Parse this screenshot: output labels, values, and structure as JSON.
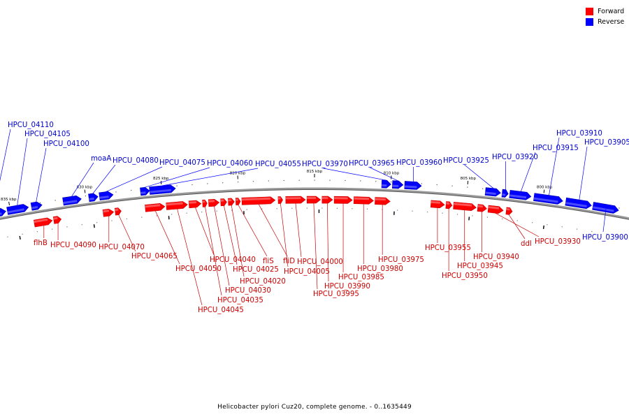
{
  "legend": {
    "forward": {
      "label": "Forward",
      "color": "#ff0000"
    },
    "reverse": {
      "label": "Reverse",
      "color": "#0000ff"
    }
  },
  "caption": "Helicobacter pylori Cuz20, complete genome. - 0..1635449",
  "scale": {
    "ticks": [
      {
        "kbp": 835,
        "label": "835 kbp"
      },
      {
        "kbp": 830,
        "label": "830 kbp"
      },
      {
        "kbp": 825,
        "label": "825 kbp"
      },
      {
        "kbp": 820,
        "label": "820 kbp"
      },
      {
        "kbp": 815,
        "label": "815 kbp"
      },
      {
        "kbp": 810,
        "label": "810 kbp"
      },
      {
        "kbp": 805,
        "label": "805 kbp"
      },
      {
        "kbp": 800,
        "label": "800 kbp"
      }
    ]
  },
  "reverse_genes": [
    {
      "label": "HPCU_04110",
      "s": 836.8,
      "e": 835.3
    },
    {
      "label": "HPCU_04105",
      "s": 835.2,
      "e": 833.8
    },
    {
      "label": "HPCU_04100",
      "s": 833.6,
      "e": 832.9
    },
    {
      "label": "moaA",
      "s": 831.5,
      "e": 830.3
    },
    {
      "label": "HPCU_04080",
      "s": 829.8,
      "e": 829.2
    },
    {
      "label": "HPCU_04075",
      "s": 829.1,
      "e": 828.2
    },
    {
      "label": "HPCU_04060",
      "s": 826.4,
      "e": 825.8
    },
    {
      "label": "HPCU_04055",
      "s": 825.8,
      "e": 824.1
    },
    {
      "label": "HPCU_03970",
      "s": 810.6,
      "e": 810.0
    },
    {
      "label": "HPCU_03965",
      "s": 809.9,
      "e": 809.2
    },
    {
      "label": "HPCU_03960",
      "s": 809.1,
      "e": 808.0
    },
    {
      "label": "HPCU_03925",
      "s": 803.8,
      "e": 802.8
    },
    {
      "label": "HPCU_03920",
      "s": 802.7,
      "e": 802.3
    },
    {
      "label": "HPCU_03915",
      "s": 802.2,
      "e": 800.8
    },
    {
      "label": "HPCU_03910",
      "s": 800.6,
      "e": 798.7
    },
    {
      "label": "HPCU_03905",
      "s": 798.5,
      "e": 796.8
    },
    {
      "label": "HPCU_03900",
      "s": 796.7,
      "e": 795.0
    }
  ],
  "forward_genes": [
    {
      "label": "flhB",
      "s": 833.6,
      "e": 832.4
    },
    {
      "label": "HPCU_04090",
      "s": 832.3,
      "e": 831.8
    },
    {
      "label": "HPCU_04070",
      "s": 829.0,
      "e": 828.3
    },
    {
      "label": "HPCU_04065",
      "s": 828.2,
      "e": 827.8
    },
    {
      "label": "HPCU_04050",
      "s": 826.2,
      "e": 824.9
    },
    {
      "label": "HPCU_04045",
      "s": 824.8,
      "e": 823.4
    },
    {
      "label": "HPCU_04040",
      "s": 823.3,
      "e": 822.5
    },
    {
      "label": "HPCU_04035",
      "s": 822.4,
      "e": 822.1
    },
    {
      "label": "HPCU_04030",
      "s": 822.0,
      "e": 821.3
    },
    {
      "label": "HPCU_04025",
      "s": 821.2,
      "e": 820.8
    },
    {
      "label": "HPCU_04020",
      "s": 820.7,
      "e": 820.3
    },
    {
      "label": "fliS",
      "s": 820.2,
      "e": 819.9
    },
    {
      "label": "fliD",
      "s": 819.8,
      "e": 817.6
    },
    {
      "label": "HPCU_04005",
      "s": 817.4,
      "e": 817.1
    },
    {
      "label": "HPCU_04000",
      "s": 816.9,
      "e": 815.6
    },
    {
      "label": "HPCU_03995",
      "s": 815.5,
      "e": 814.6
    },
    {
      "label": "HPCU_03990",
      "s": 814.5,
      "e": 813.8
    },
    {
      "label": "HPCU_03985",
      "s": 813.7,
      "e": 812.5
    },
    {
      "label": "HPCU_03980",
      "s": 812.4,
      "e": 811.1
    },
    {
      "label": "HPCU_03975",
      "s": 811.0,
      "e": 810.0
    },
    {
      "label": "HPCU_03955",
      "s": 807.3,
      "e": 806.4
    },
    {
      "label": "HPCU_03950",
      "s": 806.3,
      "e": 805.9
    },
    {
      "label": "HPCU_03945",
      "s": 805.8,
      "e": 804.3
    },
    {
      "label": "HPCU_03940",
      "s": 804.2,
      "e": 803.6
    },
    {
      "label": "HPCU_03930",
      "s": 803.5,
      "e": 802.5
    },
    {
      "label": "ddl",
      "s": 802.3,
      "e": 801.9
    }
  ]
}
